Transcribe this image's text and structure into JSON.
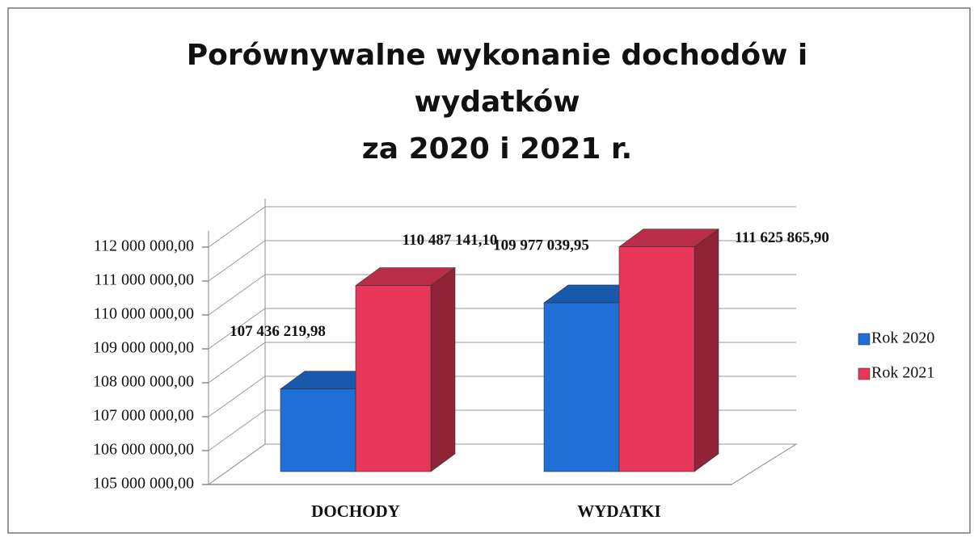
{
  "chart_data": {
    "type": "bar3d",
    "title": [
      "Porównywalne wykonanie dochodów i",
      "wydatków",
      "za 2020 i 2021 r."
    ],
    "categories": [
      "DOCHODY",
      "WYDATKI"
    ],
    "series": [
      {
        "name": "Rok 2020",
        "color": "#1f6fd6",
        "values": [
          107436219.98,
          109977039.95
        ],
        "value_labels": [
          "107 436 219,98",
          "109 977 039,95"
        ]
      },
      {
        "name": "Rok 2021",
        "color": "#e8385a",
        "values": [
          110487141.1,
          111625865.9
        ],
        "value_labels": [
          "110 487 141,10",
          "111 625 865,90"
        ]
      }
    ],
    "ylim": [
      105000000,
      112000000
    ],
    "yticks": [
      {
        "value": 105000000,
        "label": "105 000 000,00"
      },
      {
        "value": 106000000,
        "label": "106 000 000,00"
      },
      {
        "value": 107000000,
        "label": "107 000 000,00"
      },
      {
        "value": 108000000,
        "label": "108 000 000,00"
      },
      {
        "value": 109000000,
        "label": "109 000 000,00"
      },
      {
        "value": 110000000,
        "label": "110 000 000,00"
      },
      {
        "value": 111000000,
        "label": "111 000 000,00"
      },
      {
        "value": 112000000,
        "label": "112 000 000,00"
      }
    ],
    "grid": true,
    "legend": "right"
  }
}
